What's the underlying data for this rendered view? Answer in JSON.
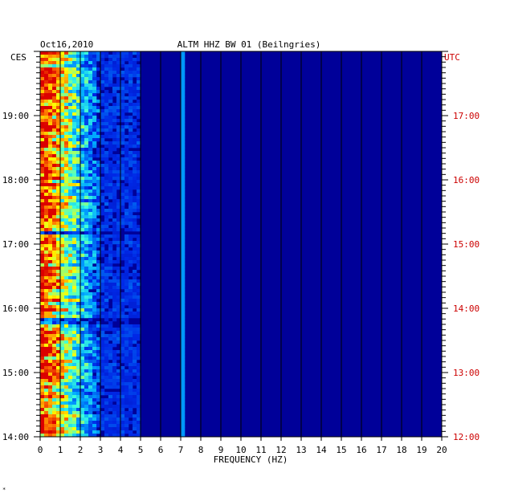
{
  "chart_data": {
    "type": "heatmap",
    "date": "Oct16,2010",
    "station_title": "ALTM HHZ BW 01 (Beilngries)",
    "left_zone": "CES",
    "right_zone": "UTC",
    "xlabel": "FREQUENCY (HZ)",
    "xlim": [
      0,
      20
    ],
    "x_ticks": [
      "0",
      "1",
      "2",
      "3",
      "4",
      "5",
      "6",
      "7",
      "8",
      "9",
      "10",
      "11",
      "12",
      "13",
      "14",
      "15",
      "16",
      "17",
      "18",
      "19",
      "20"
    ],
    "left_time_range_hours": [
      14.0,
      20.0
    ],
    "left_time_ticks": [
      "14:00",
      "15:00",
      "16:00",
      "17:00",
      "18:00",
      "19:00"
    ],
    "right_time_ticks": [
      "12:00",
      "13:00",
      "14:00",
      "15:00",
      "16:00",
      "17:00"
    ],
    "colors": {
      "background": "#000099",
      "low": "#0000aa",
      "mid": "#00aaff",
      "high": "#ffff00",
      "peak": "#ff0000",
      "right_axis_text": "#cc0000"
    },
    "spectral_features": {
      "dominant_band_hz": [
        0,
        3
      ],
      "persistent_line_hz": 7.1,
      "quiet_gaps_cest": [
        "17:10",
        "15:48"
      ]
    }
  },
  "footnote": "*"
}
